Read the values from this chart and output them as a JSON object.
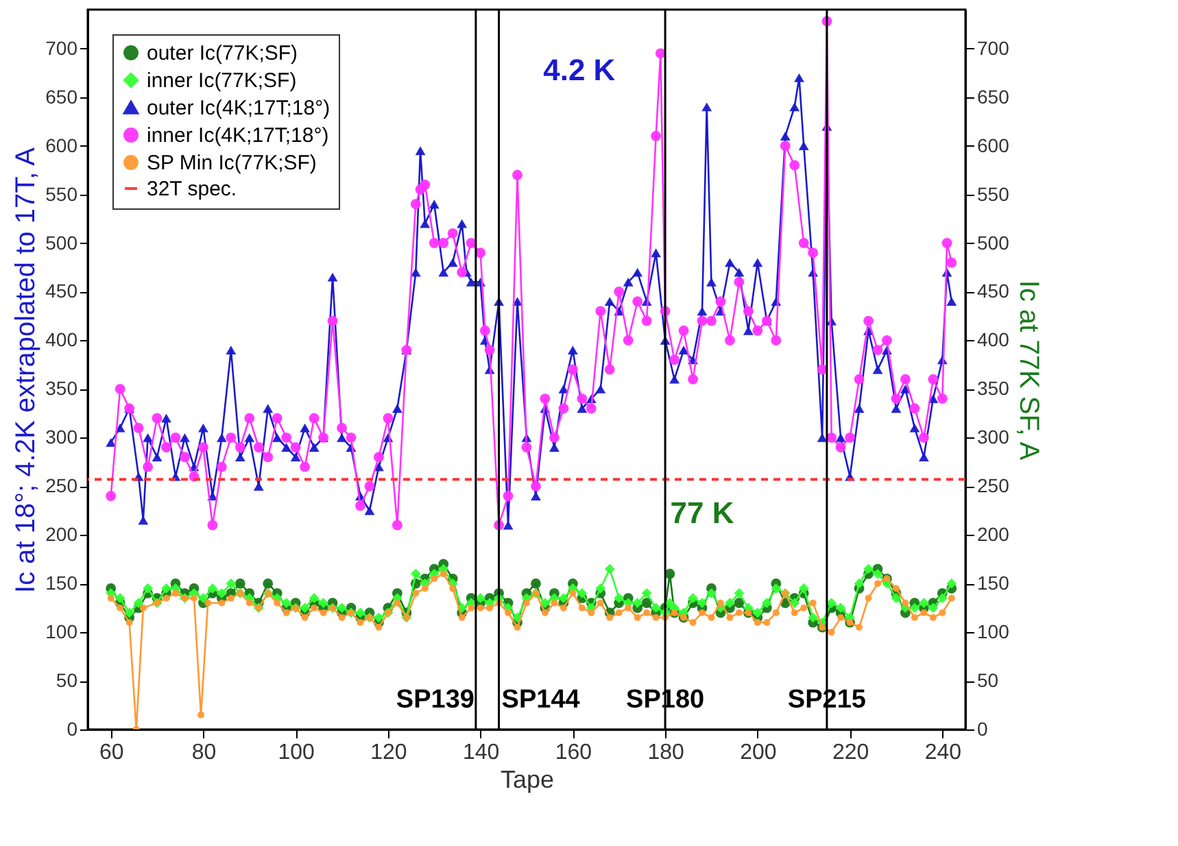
{
  "chart_data": {
    "type": "line",
    "xlabel": "Tape",
    "ylabel": "Ic at 18°; 4.2K extrapolated to 17T, A",
    "y2label": "Ic at 77K SF, A",
    "xlim": [
      55,
      245
    ],
    "xticks": [
      60,
      80,
      100,
      120,
      140,
      160,
      180,
      200,
      220,
      240
    ],
    "ylim": [
      0,
      740
    ],
    "yticks": [
      0,
      50,
      100,
      150,
      200,
      250,
      300,
      350,
      400,
      450,
      500,
      550,
      600,
      650,
      700
    ],
    "y2lim": [
      0,
      740
    ],
    "y2ticks": [
      0,
      50,
      100,
      150,
      200,
      250,
      300,
      350,
      400,
      450,
      500,
      550,
      600,
      650,
      700
    ],
    "grid": false,
    "legend": "top left",
    "line_style": "solid",
    "series": [
      {
        "name": "outer Ic(77K;SF)",
        "color": "#1a7a1a",
        "axis": "y2",
        "marker": "circle",
        "x": [
          60,
          62,
          64,
          66,
          68,
          70,
          72,
          74,
          76,
          78,
          80,
          82,
          84,
          86,
          88,
          90,
          92,
          94,
          96,
          98,
          100,
          102,
          104,
          106,
          108,
          110,
          112,
          114,
          116,
          118,
          120,
          122,
          124,
          126,
          128,
          130,
          132,
          134,
          136,
          138,
          140,
          142,
          144,
          146,
          148,
          150,
          152,
          154,
          156,
          158,
          160,
          162,
          164,
          166,
          168,
          170,
          172,
          174,
          176,
          178,
          180,
          181,
          182,
          184,
          186,
          188,
          190,
          192,
          194,
          196,
          198,
          200,
          202,
          204,
          206,
          208,
          210,
          212,
          214,
          216,
          218,
          220,
          222,
          224,
          226,
          228,
          230,
          232,
          234,
          236,
          238,
          240,
          242
        ],
        "values": [
          145,
          130,
          115,
          125,
          140,
          135,
          140,
          150,
          140,
          145,
          130,
          140,
          135,
          140,
          150,
          140,
          130,
          150,
          140,
          125,
          130,
          120,
          130,
          125,
          130,
          120,
          125,
          115,
          120,
          110,
          125,
          140,
          120,
          150,
          155,
          165,
          170,
          155,
          120,
          135,
          130,
          135,
          140,
          130,
          110,
          140,
          150,
          125,
          140,
          130,
          150,
          135,
          130,
          140,
          120,
          130,
          135,
          125,
          130,
          120,
          125,
          160,
          120,
          115,
          130,
          125,
          145,
          120,
          125,
          130,
          120,
          115,
          125,
          150,
          130,
          135,
          140,
          110,
          105,
          125,
          120,
          110,
          145,
          160,
          165,
          155,
          140,
          120,
          130,
          125,
          130,
          140,
          145
        ]
      },
      {
        "name": "inner Ic(77K;SF)",
        "color": "#33ff33",
        "axis": "y2",
        "marker": "diamond",
        "x": [
          60,
          62,
          64,
          66,
          68,
          70,
          72,
          74,
          76,
          78,
          80,
          82,
          84,
          86,
          88,
          90,
          92,
          94,
          96,
          98,
          100,
          102,
          104,
          106,
          108,
          110,
          112,
          114,
          116,
          118,
          120,
          122,
          124,
          126,
          128,
          130,
          132,
          134,
          136,
          138,
          140,
          142,
          144,
          146,
          148,
          150,
          152,
          154,
          156,
          158,
          160,
          162,
          164,
          166,
          168,
          170,
          172,
          174,
          176,
          178,
          180,
          181,
          182,
          184,
          186,
          188,
          190,
          192,
          194,
          196,
          198,
          200,
          202,
          204,
          206,
          208,
          210,
          212,
          214,
          216,
          218,
          220,
          222,
          224,
          226,
          228,
          230,
          232,
          234,
          236,
          238,
          240,
          242
        ],
        "values": [
          140,
          135,
          120,
          130,
          145,
          130,
          145,
          145,
          135,
          140,
          135,
          145,
          140,
          150,
          140,
          135,
          125,
          140,
          135,
          130,
          125,
          125,
          135,
          130,
          125,
          125,
          120,
          120,
          115,
          115,
          120,
          135,
          115,
          160,
          150,
          160,
          165,
          150,
          125,
          130,
          135,
          130,
          135,
          125,
          115,
          135,
          140,
          130,
          135,
          135,
          145,
          140,
          125,
          145,
          165,
          135,
          130,
          130,
          140,
          125,
          120,
          130,
          125,
          120,
          135,
          130,
          140,
          125,
          130,
          140,
          125,
          120,
          130,
          145,
          140,
          130,
          145,
          115,
          110,
          130,
          125,
          115,
          150,
          165,
          160,
          150,
          135,
          125,
          125,
          130,
          125,
          135,
          150
        ]
      },
      {
        "name": "outer Ic(4K;17T;18°)",
        "color": "#1a1acc",
        "marker": "triangle",
        "x": [
          60,
          62,
          64,
          66,
          67,
          68,
          70,
          72,
          74,
          76,
          78,
          80,
          82,
          84,
          86,
          88,
          90,
          92,
          94,
          96,
          98,
          100,
          102,
          104,
          106,
          108,
          110,
          112,
          114,
          116,
          118,
          120,
          122,
          124,
          126,
          127,
          128,
          130,
          132,
          134,
          136,
          137,
          138,
          140,
          141,
          142,
          144,
          146,
          148,
          150,
          152,
          154,
          156,
          158,
          160,
          162,
          164,
          166,
          168,
          170,
          172,
          174,
          176,
          178,
          180,
          182,
          184,
          186,
          188,
          189,
          190,
          192,
          194,
          196,
          198,
          200,
          202,
          204,
          206,
          208,
          209,
          210,
          212,
          214,
          215,
          216,
          218,
          220,
          222,
          224,
          226,
          228,
          230,
          232,
          234,
          236,
          238,
          240,
          241,
          242
        ],
        "values": [
          295,
          310,
          330,
          260,
          215,
          300,
          280,
          320,
          260,
          300,
          270,
          310,
          240,
          300,
          390,
          280,
          300,
          250,
          330,
          300,
          290,
          280,
          310,
          290,
          300,
          465,
          300,
          290,
          240,
          225,
          270,
          300,
          330,
          390,
          470,
          595,
          520,
          540,
          470,
          480,
          520,
          470,
          460,
          460,
          400,
          370,
          440,
          210,
          440,
          300,
          240,
          330,
          290,
          350,
          390,
          330,
          340,
          350,
          440,
          430,
          460,
          470,
          440,
          490,
          400,
          360,
          390,
          380,
          430,
          640,
          460,
          430,
          480,
          470,
          410,
          480,
          420,
          440,
          610,
          640,
          670,
          600,
          470,
          300,
          620,
          420,
          300,
          260,
          330,
          410,
          370,
          390,
          330,
          350,
          310,
          280,
          340,
          380,
          470,
          440
        ]
      },
      {
        "name": "inner Ic(4K;17T;18°)",
        "color": "#ff33ff",
        "marker": "circle",
        "x": [
          60,
          62,
          64,
          66,
          68,
          70,
          72,
          74,
          76,
          78,
          80,
          82,
          84,
          86,
          88,
          90,
          92,
          94,
          96,
          98,
          100,
          102,
          104,
          106,
          108,
          110,
          112,
          114,
          116,
          118,
          120,
          122,
          124,
          126,
          127,
          128,
          130,
          132,
          134,
          136,
          138,
          140,
          141,
          142,
          144,
          146,
          148,
          150,
          152,
          154,
          156,
          158,
          160,
          162,
          164,
          166,
          168,
          170,
          172,
          174,
          176,
          178,
          179,
          180,
          182,
          184,
          186,
          188,
          190,
          192,
          194,
          196,
          198,
          200,
          202,
          204,
          206,
          208,
          210,
          212,
          214,
          215,
          216,
          218,
          220,
          222,
          224,
          226,
          228,
          230,
          232,
          234,
          236,
          238,
          240,
          241,
          242
        ],
        "values": [
          240,
          350,
          330,
          310,
          270,
          320,
          290,
          300,
          280,
          260,
          290,
          210,
          270,
          300,
          290,
          320,
          290,
          280,
          320,
          300,
          290,
          270,
          320,
          300,
          420,
          310,
          300,
          230,
          250,
          280,
          320,
          210,
          390,
          540,
          555,
          560,
          500,
          500,
          510,
          470,
          500,
          490,
          410,
          390,
          210,
          240,
          570,
          290,
          250,
          340,
          300,
          330,
          370,
          340,
          330,
          430,
          370,
          450,
          400,
          440,
          420,
          610,
          695,
          430,
          380,
          410,
          360,
          420,
          420,
          440,
          400,
          460,
          430,
          410,
          420,
          400,
          600,
          580,
          500,
          490,
          370,
          728,
          300,
          290,
          300,
          360,
          420,
          390,
          400,
          340,
          360,
          330,
          300,
          360,
          340,
          500,
          480
        ]
      },
      {
        "name": "SP Min Ic(77K;SF)",
        "color": "#ff9933",
        "axis": "y2",
        "marker": "circle",
        "x": [
          60,
          62,
          64,
          65.5,
          67,
          70,
          72,
          74,
          76,
          78,
          79.5,
          81,
          84,
          86,
          88,
          90,
          92,
          94,
          96,
          98,
          100,
          102,
          104,
          106,
          108,
          110,
          112,
          114,
          116,
          118,
          120,
          122,
          124,
          126,
          128,
          130,
          132,
          134,
          136,
          138,
          140,
          142,
          144,
          146,
          148,
          150,
          152,
          154,
          156,
          158,
          160,
          162,
          164,
          166,
          168,
          170,
          172,
          174,
          176,
          178,
          180,
          182,
          184,
          186,
          188,
          190,
          192,
          194,
          196,
          198,
          200,
          202,
          204,
          206,
          208,
          210,
          212,
          214,
          216,
          218,
          220,
          222,
          224,
          226,
          228,
          230,
          232,
          234,
          236,
          238,
          240,
          242
        ],
        "values": [
          135,
          125,
          110,
          0,
          125,
          130,
          135,
          140,
          135,
          135,
          15,
          130,
          130,
          135,
          140,
          130,
          125,
          140,
          130,
          120,
          125,
          115,
          125,
          120,
          125,
          115,
          120,
          110,
          115,
          105,
          120,
          130,
          115,
          140,
          145,
          155,
          160,
          145,
          115,
          125,
          125,
          125,
          130,
          120,
          105,
          130,
          140,
          120,
          130,
          125,
          140,
          125,
          120,
          130,
          115,
          120,
          125,
          115,
          120,
          115,
          115,
          120,
          115,
          110,
          120,
          115,
          130,
          115,
          120,
          120,
          110,
          110,
          120,
          140,
          120,
          125,
          130,
          105,
          100,
          115,
          110,
          105,
          135,
          150,
          155,
          145,
          130,
          115,
          120,
          115,
          120,
          135
        ]
      }
    ],
    "ref_lines": [
      {
        "axis": "y",
        "value": 257,
        "label": "32T spec.",
        "color": "#ff3333",
        "line_style": "dashed"
      },
      {
        "axis": "x",
        "value": 139,
        "label": "SP139",
        "color": "#000000",
        "line_style": "solid"
      },
      {
        "axis": "x",
        "value": 144,
        "label": "SP144",
        "color": "#000000",
        "line_style": "solid"
      },
      {
        "axis": "x",
        "value": 180,
        "label": "SP180",
        "color": "#000000",
        "line_style": "solid"
      },
      {
        "axis": "x",
        "value": 215,
        "label": "SP215",
        "color": "#000000",
        "line_style": "solid"
      }
    ],
    "annotations": [
      "4.2 K",
      "77 K"
    ]
  }
}
